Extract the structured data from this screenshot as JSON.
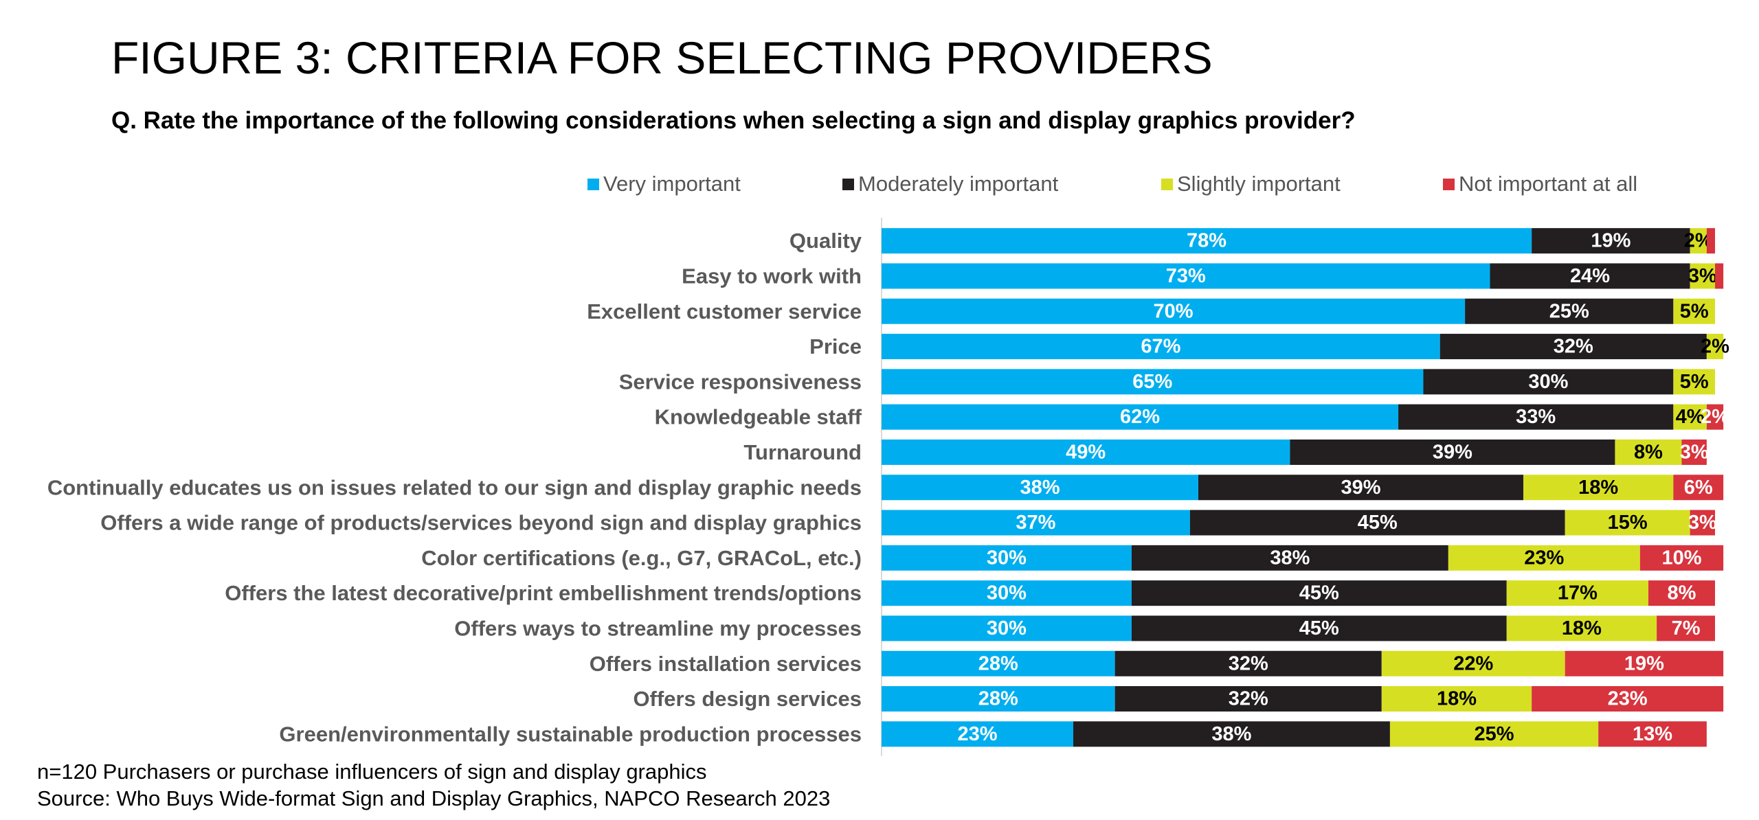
{
  "title": "FIGURE 3: CRITERIA FOR SELECTING PROVIDERS",
  "question": "Q. Rate the importance of the following considerations when selecting a sign and display graphics provider?",
  "footnote": {
    "sample": "n=120 Purchasers or purchase influencers of sign and display graphics",
    "source": "Source: Who Buys Wide-format Sign and Display Graphics, NAPCO Research 2023"
  },
  "colors": {
    "very_important": "#00AEEF",
    "moderately_important": "#231F20",
    "slightly_important": "#D7DF23",
    "not_important": "#D7343E"
  },
  "chart_data": {
    "type": "bar",
    "orientation": "horizontal",
    "stacked": true,
    "xlim": [
      0,
      100
    ],
    "legend_position": "top",
    "grid": false,
    "categories": [
      "Quality",
      "Easy to work with",
      "Excellent customer service",
      "Price",
      "Service responsiveness",
      "Knowledgeable staff",
      "Turnaround",
      "Continually educates us on issues related to our sign and display graphic needs",
      "Offers a wide range of products/services beyond sign and display graphics",
      "Color certifications (e.g., G7, GRACoL, etc.)",
      "Offers the latest decorative/print embellishment trends/options",
      "Offers ways to streamline my processes",
      "Offers installation services",
      "Offers design services",
      "Green/environmentally sustainable production processes"
    ],
    "series": [
      {
        "name": "Very important",
        "values": [
          78,
          73,
          70,
          67,
          65,
          62,
          49,
          38,
          37,
          30,
          30,
          30,
          28,
          28,
          23
        ]
      },
      {
        "name": "Moderately important",
        "values": [
          19,
          24,
          25,
          32,
          30,
          33,
          39,
          39,
          45,
          38,
          45,
          45,
          32,
          32,
          38
        ]
      },
      {
        "name": "Slightly important",
        "values": [
          2,
          3,
          5,
          2,
          5,
          4,
          8,
          18,
          15,
          23,
          17,
          18,
          22,
          18,
          25
        ]
      },
      {
        "name": "Not important at all",
        "values": [
          1,
          1,
          0,
          0,
          0,
          2,
          3,
          6,
          3,
          10,
          8,
          7,
          19,
          23,
          13
        ]
      }
    ]
  }
}
